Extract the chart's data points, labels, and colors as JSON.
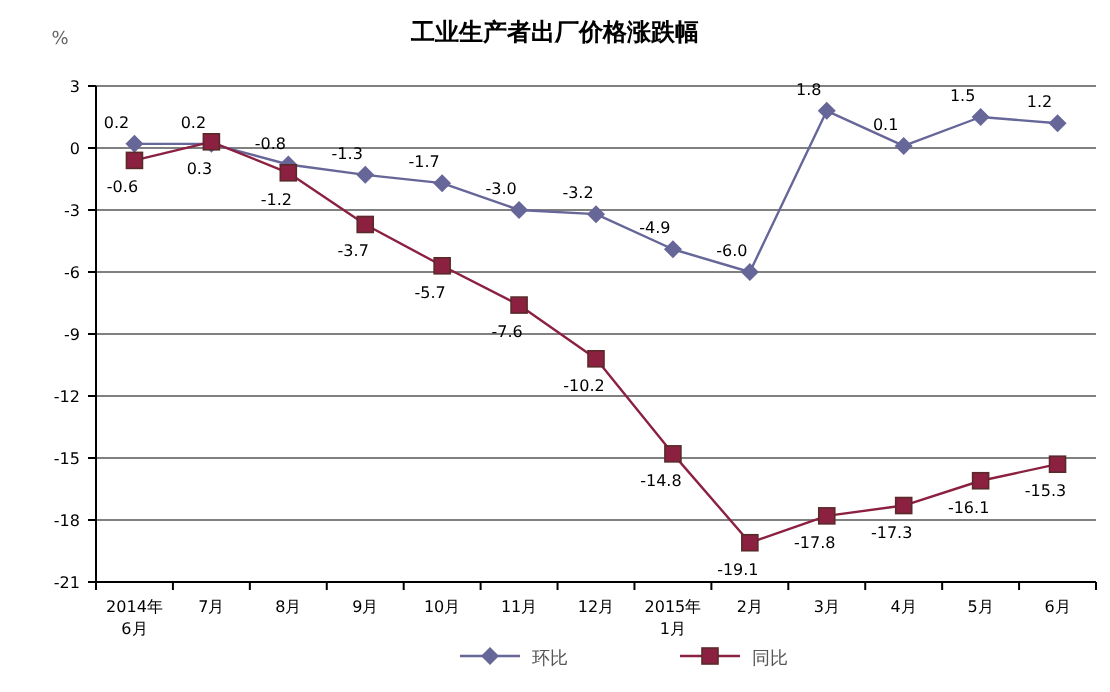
{
  "chart_data": {
    "type": "line",
    "title": "工业生产者出厂价格涨跌幅",
    "ylabel": "%",
    "categories": [
      "2014年 6月",
      "7月",
      "8月",
      "9月",
      "10月",
      "11月",
      "12月",
      "2015年 1月",
      "2月",
      "3月",
      "4月",
      "5月",
      "6月"
    ],
    "ylim": [
      -21,
      3
    ],
    "yticks": [
      3,
      0,
      -3,
      -6,
      -9,
      -12,
      -15,
      -18,
      -21
    ],
    "grid": "y",
    "legend": "bottom",
    "series": [
      {
        "name": "环比",
        "color": "#666699",
        "marker": "diamond",
        "values": [
          0.2,
          0.2,
          -0.8,
          -1.3,
          -1.7,
          -3.0,
          -3.2,
          -4.9,
          -6.0,
          1.8,
          0.1,
          1.5,
          1.2
        ],
        "value_labels": [
          "0.2",
          "0.2",
          "-0.8",
          "-1.3",
          "-1.7",
          "-3.0",
          "-3.2",
          "-4.9",
          "-6.0",
          "1.8",
          "0.1",
          "1.5",
          "1.2"
        ]
      },
      {
        "name": "同比",
        "color": "#8b2040",
        "marker": "square",
        "values": [
          -0.6,
          0.3,
          -1.2,
          -3.7,
          -5.7,
          -7.6,
          -10.2,
          -14.8,
          -19.1,
          -17.8,
          -17.3,
          -16.1,
          -15.3
        ],
        "value_labels": [
          "-0.6",
          "0.3",
          "-1.2",
          "-3.7",
          "-5.7",
          "-7.6",
          "-10.2",
          "-14.8",
          "-19.1",
          "-17.8",
          "-17.3",
          "-16.1",
          "-15.3"
        ]
      }
    ]
  }
}
